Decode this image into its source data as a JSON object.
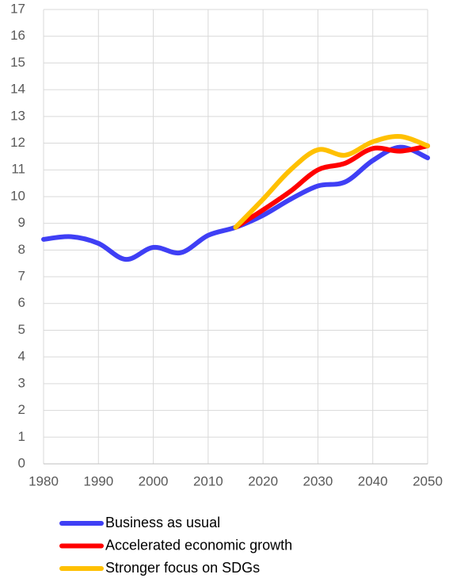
{
  "chart_data": {
    "type": "line",
    "x": [
      1980,
      1985,
      1990,
      1995,
      2000,
      2005,
      2010,
      2015,
      2020,
      2025,
      2030,
      2035,
      2040,
      2045,
      2050
    ],
    "series": [
      {
        "name": "Business as usual",
        "color": "#3f3ff5",
        "values": [
          8.4,
          8.5,
          8.25,
          7.65,
          8.1,
          7.9,
          8.55,
          8.85,
          9.3,
          9.9,
          10.4,
          10.55,
          11.35,
          11.85,
          11.45
        ]
      },
      {
        "name": "Accelerated economic growth",
        "color": "#ff0000",
        "values": [
          null,
          null,
          null,
          null,
          null,
          null,
          null,
          8.85,
          9.5,
          10.2,
          11.0,
          11.25,
          11.8,
          11.7,
          11.9
        ]
      },
      {
        "name": "Stronger focus on SDGs",
        "color": "#ffc000",
        "values": [
          null,
          null,
          null,
          null,
          null,
          null,
          null,
          8.85,
          9.9,
          11.0,
          11.75,
          11.55,
          12.05,
          12.25,
          11.9
        ]
      }
    ],
    "xlim": [
      1980,
      2050
    ],
    "xticks": [
      1980,
      1990,
      2000,
      2010,
      2020,
      2030,
      2040,
      2050
    ],
    "ylim": [
      0,
      17
    ],
    "yticks": [
      0,
      1,
      2,
      3,
      4,
      5,
      6,
      7,
      8,
      9,
      10,
      11,
      12,
      13,
      14,
      15,
      16,
      17
    ],
    "grid": true,
    "legend": "bottom"
  }
}
